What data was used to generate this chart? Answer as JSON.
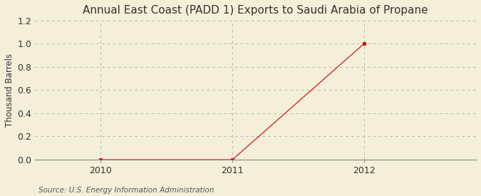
{
  "title": "Annual East Coast (PADD 1) Exports to Saudi Arabia of Propane",
  "ylabel": "Thousand Barrels",
  "source": "Source: U.S. Energy Information Administration",
  "x": [
    2010,
    2011,
    2012
  ],
  "y": [
    0,
    0,
    1.0
  ],
  "xlim": [
    2009.5,
    2012.85
  ],
  "ylim": [
    0,
    1.2
  ],
  "yticks": [
    0.0,
    0.2,
    0.4,
    0.6,
    0.8,
    1.0,
    1.2
  ],
  "xticks": [
    2010,
    2011,
    2012
  ],
  "marker_color": "#cc0000",
  "line_color": "#cc0000",
  "background_color": "#f5eed8",
  "grid_color": "#bbbbbb",
  "title_fontsize": 11,
  "label_fontsize": 8.5,
  "tick_fontsize": 9,
  "source_fontsize": 7.5
}
